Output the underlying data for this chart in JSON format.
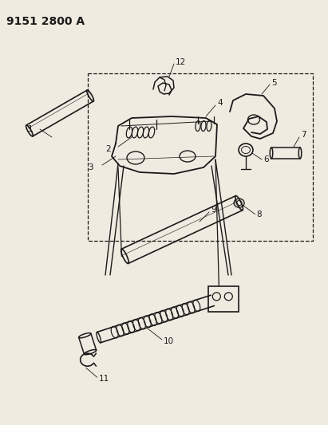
{
  "title": "9151 2800 A",
  "bg_color": "#f0ebe0",
  "line_color": "#1a1a1a",
  "title_fontsize": 10,
  "label_fontsize": 7.5,
  "fig_width": 4.11,
  "fig_height": 5.33,
  "dpi": 100
}
